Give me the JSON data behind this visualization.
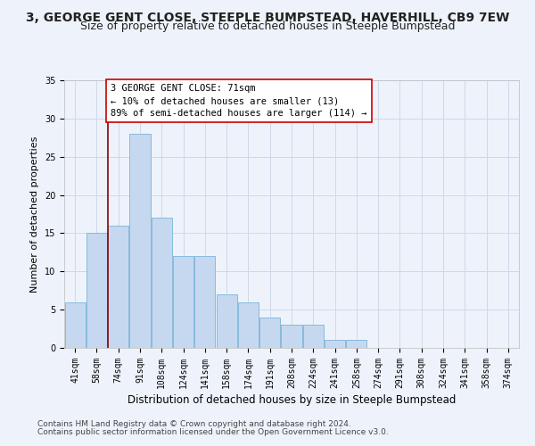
{
  "title": "3, GEORGE GENT CLOSE, STEEPLE BUMPSTEAD, HAVERHILL, CB9 7EW",
  "subtitle": "Size of property relative to detached houses in Steeple Bumpstead",
  "xlabel": "Distribution of detached houses by size in Steeple Bumpstead",
  "ylabel": "Number of detached properties",
  "categories": [
    "41sqm",
    "58sqm",
    "74sqm",
    "91sqm",
    "108sqm",
    "124sqm",
    "141sqm",
    "158sqm",
    "174sqm",
    "191sqm",
    "208sqm",
    "224sqm",
    "241sqm",
    "258sqm",
    "274sqm",
    "291sqm",
    "308sqm",
    "324sqm",
    "341sqm",
    "358sqm",
    "374sqm"
  ],
  "values": [
    6,
    15,
    16,
    28,
    17,
    12,
    12,
    7,
    6,
    4,
    3,
    3,
    1,
    1,
    0,
    0,
    0,
    0,
    0,
    0,
    0
  ],
  "bar_color": "#c5d8f0",
  "bar_edge_color": "#7ab3d9",
  "background_color": "#eef3fb",
  "grid_color": "#d0d8e8",
  "vline_x": 1.5,
  "vline_color": "#8b0000",
  "annotation_text": "3 GEORGE GENT CLOSE: 71sqm\n← 10% of detached houses are smaller (13)\n89% of semi-detached houses are larger (114) →",
  "annotation_box_color": "#ffffff",
  "annotation_box_edge": "#cc0000",
  "ylim": [
    0,
    35
  ],
  "yticks": [
    0,
    5,
    10,
    15,
    20,
    25,
    30,
    35
  ],
  "footer_line1": "Contains HM Land Registry data © Crown copyright and database right 2024.",
  "footer_line2": "Contains public sector information licensed under the Open Government Licence v3.0.",
  "title_fontsize": 10,
  "subtitle_fontsize": 9,
  "annotation_fontsize": 7.5,
  "footer_fontsize": 6.5,
  "ylabel_fontsize": 8,
  "xlabel_fontsize": 8.5,
  "tick_fontsize": 7
}
